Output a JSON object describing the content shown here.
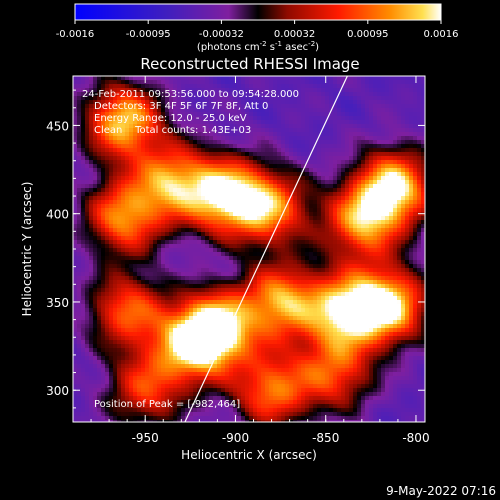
{
  "chart_data": {
    "type": "heatmap",
    "title": "Reconstructed RHESSI Image",
    "colorbar": {
      "ticks": [
        "-0.0016",
        "-0.00095",
        "-0.00032",
        "0.00032",
        "0.00095",
        "0.0016"
      ],
      "range": [
        -0.0016,
        0.0016
      ],
      "label_main": "(photons cm",
      "label_exp1": "-2",
      "label_mid": " s",
      "label_exp2": "-1",
      "label_end": " asec",
      "label_exp3": "-2",
      "label_close": ")"
    },
    "xlabel": "Heliocentric X (arcsec)",
    "ylabel": "Heliocentric Y (arcsec)",
    "xlim": [
      -990,
      -795
    ],
    "ylim": [
      282,
      478
    ],
    "xticks": [
      -950,
      -900,
      -850,
      -800
    ],
    "xtick_labels": [
      "-950",
      "-900",
      "-850",
      "-800"
    ],
    "yticks": [
      300,
      350,
      400,
      450
    ],
    "ytick_labels": [
      "300",
      "350",
      "400",
      "450"
    ],
    "annotations": [
      "24-Feb-2011 09:53:56.000 to 09:54:28.000",
      "Detectors: 3F 4F 5F 6F 7F 8F, Att 0",
      "Energy Range: 12.0 - 25.0 keV",
      "Clean    Total counts: 1.43E+03"
    ],
    "peak_label": "Position of Peak = [-982,464]",
    "limb_line": {
      "x": [
        -928,
        -838
      ],
      "y": [
        282,
        478
      ]
    },
    "blobs": [
      {
        "x": -905,
        "y": 410,
        "v": 0.0016
      },
      {
        "x": -962,
        "y": 452,
        "v": 0.0015
      },
      {
        "x": -935,
        "y": 418,
        "v": 0.0012
      },
      {
        "x": -880,
        "y": 403,
        "v": 0.0011
      },
      {
        "x": -812,
        "y": 415,
        "v": 0.0016
      },
      {
        "x": -830,
        "y": 395,
        "v": 0.0012
      },
      {
        "x": -962,
        "y": 398,
        "v": 0.0012
      },
      {
        "x": -910,
        "y": 335,
        "v": 0.0016
      },
      {
        "x": -925,
        "y": 325,
        "v": 0.0012
      },
      {
        "x": -875,
        "y": 350,
        "v": 0.0013
      },
      {
        "x": -840,
        "y": 345,
        "v": 0.0014
      },
      {
        "x": -815,
        "y": 348,
        "v": 0.0016
      },
      {
        "x": -960,
        "y": 345,
        "v": 0.001
      },
      {
        "x": -880,
        "y": 300,
        "v": 0.0011
      },
      {
        "x": -950,
        "y": 300,
        "v": 0.0008
      },
      {
        "x": -845,
        "y": 310,
        "v": 0.0009
      }
    ]
  },
  "footer": {
    "timestamp": "9-May-2022 07:16"
  }
}
